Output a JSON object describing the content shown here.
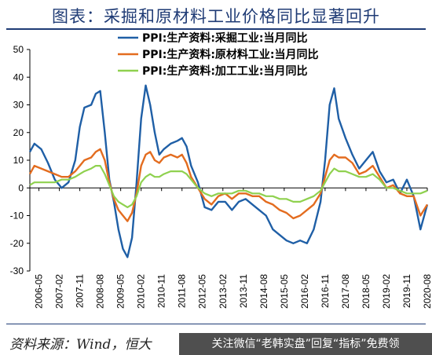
{
  "title": "图表：采掘和原材料工业价格同比显著回升",
  "source": "资料来源：Wind，恒大",
  "footer_banner": "关注微信“老韩实盘”回复“指标”免费领",
  "chart_data": {
    "type": "line",
    "ylim": [
      -30,
      50
    ],
    "yticks": [
      -30,
      -20,
      -10,
      0,
      10,
      20,
      30,
      40,
      50
    ],
    "xrange": [
      "2006-01",
      "2020-08"
    ],
    "xticks": [
      "2006-05",
      "2007-02",
      "2007-11",
      "2008-08",
      "2009-05",
      "2010-02",
      "2010-11",
      "2011-08",
      "2012-05",
      "2013-02",
      "2013-11",
      "2014-08",
      "2015-05",
      "2016-02",
      "2016-11",
      "2017-08",
      "2018-05",
      "2019-02",
      "2019-11",
      "2020-08"
    ],
    "legend_position": "top-center",
    "series": [
      {
        "name": "PPI:生产资料:采掘工业:当月同比",
        "color": "#1f5fa6",
        "points": [
          [
            "2006-01",
            13
          ],
          [
            "2006-03",
            16
          ],
          [
            "2006-06",
            14
          ],
          [
            "2006-09",
            9
          ],
          [
            "2006-12",
            3
          ],
          [
            "2007-03",
            0
          ],
          [
            "2007-06",
            2
          ],
          [
            "2007-09",
            10
          ],
          [
            "2007-11",
            22
          ],
          [
            "2008-01",
            29
          ],
          [
            "2008-04",
            30
          ],
          [
            "2008-06",
            34
          ],
          [
            "2008-08",
            35
          ],
          [
            "2008-10",
            20
          ],
          [
            "2008-12",
            3
          ],
          [
            "2009-02",
            -5
          ],
          [
            "2009-04",
            -15
          ],
          [
            "2009-06",
            -22
          ],
          [
            "2009-08",
            -25
          ],
          [
            "2009-10",
            -18
          ],
          [
            "2009-12",
            2
          ],
          [
            "2010-02",
            25
          ],
          [
            "2010-04",
            37
          ],
          [
            "2010-06",
            30
          ],
          [
            "2010-08",
            20
          ],
          [
            "2010-10",
            12
          ],
          [
            "2010-12",
            14
          ],
          [
            "2011-03",
            16
          ],
          [
            "2011-06",
            17
          ],
          [
            "2011-08",
            18
          ],
          [
            "2011-10",
            15
          ],
          [
            "2011-12",
            8
          ],
          [
            "2012-03",
            2
          ],
          [
            "2012-06",
            -7
          ],
          [
            "2012-09",
            -8
          ],
          [
            "2012-12",
            -5
          ],
          [
            "2013-03",
            -5
          ],
          [
            "2013-06",
            -8
          ],
          [
            "2013-09",
            -5
          ],
          [
            "2013-12",
            -4
          ],
          [
            "2014-03",
            -6
          ],
          [
            "2014-06",
            -8
          ],
          [
            "2014-09",
            -10
          ],
          [
            "2014-12",
            -15
          ],
          [
            "2015-03",
            -17
          ],
          [
            "2015-06",
            -19
          ],
          [
            "2015-09",
            -20
          ],
          [
            "2015-12",
            -19
          ],
          [
            "2016-03",
            -20
          ],
          [
            "2016-06",
            -15
          ],
          [
            "2016-09",
            -5
          ],
          [
            "2016-11",
            10
          ],
          [
            "2017-01",
            30
          ],
          [
            "2017-03",
            36
          ],
          [
            "2017-05",
            25
          ],
          [
            "2017-08",
            18
          ],
          [
            "2017-11",
            12
          ],
          [
            "2018-02",
            7
          ],
          [
            "2018-05",
            10
          ],
          [
            "2018-08",
            13
          ],
          [
            "2018-11",
            6
          ],
          [
            "2019-02",
            2
          ],
          [
            "2019-05",
            3
          ],
          [
            "2019-08",
            -2
          ],
          [
            "2019-11",
            3
          ],
          [
            "2020-02",
            -3
          ],
          [
            "2020-05",
            -15
          ],
          [
            "2020-08",
            -6
          ]
        ]
      },
      {
        "name": "PPI:生产资料:原材料工业:当月同比",
        "color": "#e36c1f",
        "points": [
          [
            "2006-01",
            5
          ],
          [
            "2006-03",
            8
          ],
          [
            "2006-06",
            7
          ],
          [
            "2006-09",
            6
          ],
          [
            "2006-12",
            5
          ],
          [
            "2007-03",
            4
          ],
          [
            "2007-06",
            4
          ],
          [
            "2007-09",
            6
          ],
          [
            "2007-11",
            8
          ],
          [
            "2008-01",
            10
          ],
          [
            "2008-04",
            11
          ],
          [
            "2008-06",
            13
          ],
          [
            "2008-08",
            14
          ],
          [
            "2008-10",
            10
          ],
          [
            "2008-12",
            2
          ],
          [
            "2009-02",
            -4
          ],
          [
            "2009-04",
            -8
          ],
          [
            "2009-06",
            -10
          ],
          [
            "2009-08",
            -12
          ],
          [
            "2009-10",
            -9
          ],
          [
            "2009-12",
            -2
          ],
          [
            "2010-02",
            8
          ],
          [
            "2010-04",
            12
          ],
          [
            "2010-06",
            13
          ],
          [
            "2010-08",
            10
          ],
          [
            "2010-10",
            9
          ],
          [
            "2010-12",
            11
          ],
          [
            "2011-03",
            12
          ],
          [
            "2011-06",
            11
          ],
          [
            "2011-08",
            12
          ],
          [
            "2011-10",
            9
          ],
          [
            "2011-12",
            4
          ],
          [
            "2012-03",
            0
          ],
          [
            "2012-06",
            -4
          ],
          [
            "2012-09",
            -6
          ],
          [
            "2012-12",
            -3
          ],
          [
            "2013-03",
            -2
          ],
          [
            "2013-06",
            -4
          ],
          [
            "2013-09",
            -2
          ],
          [
            "2013-12",
            -2
          ],
          [
            "2014-03",
            -3
          ],
          [
            "2014-06",
            -3
          ],
          [
            "2014-09",
            -5
          ],
          [
            "2014-12",
            -6
          ],
          [
            "2015-03",
            -8
          ],
          [
            "2015-06",
            -9
          ],
          [
            "2015-09",
            -11
          ],
          [
            "2015-12",
            -10
          ],
          [
            "2016-03",
            -8
          ],
          [
            "2016-06",
            -6
          ],
          [
            "2016-09",
            -2
          ],
          [
            "2016-11",
            4
          ],
          [
            "2017-01",
            10
          ],
          [
            "2017-03",
            12
          ],
          [
            "2017-05",
            11
          ],
          [
            "2017-08",
            11
          ],
          [
            "2017-11",
            9
          ],
          [
            "2018-02",
            5
          ],
          [
            "2018-05",
            6
          ],
          [
            "2018-08",
            8
          ],
          [
            "2018-11",
            4
          ],
          [
            "2019-02",
            0
          ],
          [
            "2019-05",
            1
          ],
          [
            "2019-08",
            -2
          ],
          [
            "2019-11",
            -3
          ],
          [
            "2020-02",
            -3
          ],
          [
            "2020-05",
            -10
          ],
          [
            "2020-08",
            -6
          ]
        ]
      },
      {
        "name": "PPI:生产资料:加工工业:当月同比",
        "color": "#8fd14f",
        "points": [
          [
            "2006-01",
            1
          ],
          [
            "2006-03",
            2
          ],
          [
            "2006-06",
            2
          ],
          [
            "2006-09",
            2
          ],
          [
            "2006-12",
            2
          ],
          [
            "2007-03",
            3
          ],
          [
            "2007-06",
            3
          ],
          [
            "2007-09",
            4
          ],
          [
            "2007-11",
            5
          ],
          [
            "2008-01",
            6
          ],
          [
            "2008-04",
            7
          ],
          [
            "2008-06",
            8
          ],
          [
            "2008-08",
            8
          ],
          [
            "2008-10",
            5
          ],
          [
            "2008-12",
            1
          ],
          [
            "2009-02",
            -3
          ],
          [
            "2009-04",
            -5
          ],
          [
            "2009-06",
            -6
          ],
          [
            "2009-08",
            -7
          ],
          [
            "2009-10",
            -6
          ],
          [
            "2009-12",
            -3
          ],
          [
            "2010-02",
            2
          ],
          [
            "2010-04",
            4
          ],
          [
            "2010-06",
            5
          ],
          [
            "2010-08",
            4
          ],
          [
            "2010-10",
            4
          ],
          [
            "2010-12",
            5
          ],
          [
            "2011-03",
            6
          ],
          [
            "2011-06",
            6
          ],
          [
            "2011-08",
            6
          ],
          [
            "2011-10",
            5
          ],
          [
            "2011-12",
            3
          ],
          [
            "2012-03",
            0
          ],
          [
            "2012-06",
            -2
          ],
          [
            "2012-09",
            -3
          ],
          [
            "2012-12",
            -2
          ],
          [
            "2013-03",
            -2
          ],
          [
            "2013-06",
            -2
          ],
          [
            "2013-09",
            -1
          ],
          [
            "2013-12",
            -1
          ],
          [
            "2014-03",
            -2
          ],
          [
            "2014-06",
            -2
          ],
          [
            "2014-09",
            -3
          ],
          [
            "2014-12",
            -3
          ],
          [
            "2015-03",
            -4
          ],
          [
            "2015-06",
            -4
          ],
          [
            "2015-09",
            -5
          ],
          [
            "2015-12",
            -5
          ],
          [
            "2016-03",
            -4
          ],
          [
            "2016-06",
            -3
          ],
          [
            "2016-09",
            -1
          ],
          [
            "2016-11",
            2
          ],
          [
            "2017-01",
            5
          ],
          [
            "2017-03",
            7
          ],
          [
            "2017-05",
            6
          ],
          [
            "2017-08",
            6
          ],
          [
            "2017-11",
            5
          ],
          [
            "2018-02",
            4
          ],
          [
            "2018-05",
            4
          ],
          [
            "2018-08",
            5
          ],
          [
            "2018-11",
            3
          ],
          [
            "2019-02",
            0
          ],
          [
            "2019-05",
            0
          ],
          [
            "2019-08",
            -1
          ],
          [
            "2019-11",
            -2
          ],
          [
            "2020-02",
            -2
          ],
          [
            "2020-05",
            -2
          ],
          [
            "2020-08",
            -1
          ]
        ]
      }
    ]
  }
}
